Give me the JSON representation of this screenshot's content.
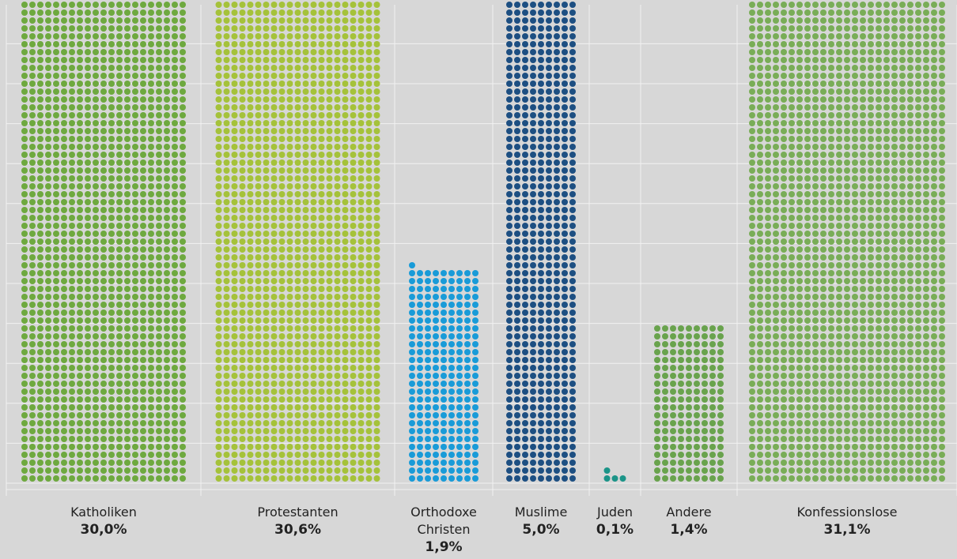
{
  "chart_data": {
    "type": "bar",
    "subtype": "dot-unit (waffle) columns",
    "grid": true,
    "gridlines_horizontal": 12,
    "colors": {
      "background": "#d7d7d7",
      "grid": "#f2f2f2"
    },
    "categories": [
      {
        "name": "Katholiken",
        "value_label": "30,0%",
        "value": 30.0,
        "color": "#6ea93f",
        "columns": 21
      },
      {
        "name": "Protestanten",
        "value_label": "30,6%",
        "value": 30.6,
        "color": "#a5c23a",
        "columns": 21
      },
      {
        "name": "Orthodoxe\nChristen",
        "value_label": "1,9%",
        "value": 1.9,
        "color": "#199bd8",
        "columns": 9
      },
      {
        "name": "Muslime",
        "value_label": "5,0%",
        "value": 5.0,
        "color": "#1d4f82",
        "columns": 9
      },
      {
        "name": "Juden",
        "value_label": "0,1%",
        "value": 0.1,
        "color": "#1b9488",
        "columns": 3
      },
      {
        "name": "Andere",
        "value_label": "1,4%",
        "value": 1.4,
        "color": "#69a34d",
        "columns": 9
      },
      {
        "name": "Konfessionslose",
        "value_label": "31,1%",
        "value": 31.1,
        "color": "#79ad57",
        "columns": 25
      }
    ]
  }
}
